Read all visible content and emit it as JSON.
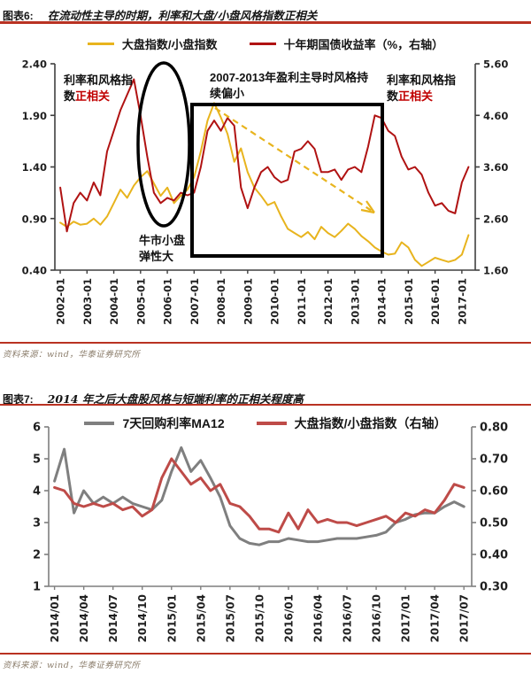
{
  "page": {
    "accent_rule_color": "#b93222",
    "background": "#ffffff",
    "annotation_highlight_color": "#c00000"
  },
  "figure6": {
    "label": "图表6:",
    "title": "在流动性主导的时期，利率和大盘/小盘风格指数正相关",
    "source": "资料来源：wind，华泰证券研究所",
    "annotations": {
      "corr_left_prefix": "利率和风格指数",
      "corr_left_highlight": "正相关",
      "box_label": "2007-2013年盈利主导时风格持续偏小",
      "corr_right_prefix": "利率和风格指数",
      "corr_right_highlight": "正相关",
      "bull_label": "牛市小盘弹性大"
    }
  },
  "figure7": {
    "label": "图表7:",
    "title": "2014 年之后大盘股风格与短端利率的正相关程度高",
    "source": "资料来源：wind，华泰证券研究所"
  },
  "chart_data": [
    {
      "id": "figure6",
      "type": "line",
      "title": "在流动性主导的时期，利率和大盘/小盘风格指数正相关",
      "x_unit": "year-month",
      "x_ticks": {
        "positions": [
          2002,
          2003,
          2004,
          2005,
          2006,
          2007,
          2008,
          2009,
          2010,
          2011,
          2012,
          2013,
          2014,
          2015,
          2016,
          2017
        ],
        "labels": [
          "2002-01",
          "2003-01",
          "2004-01",
          "2005-01",
          "2006-01",
          "2007-01",
          "2008-01",
          "2009-01",
          "2010-01",
          "2011-01",
          "2012-01",
          "2013-01",
          "2014-01",
          "2015-01",
          "2016-01",
          "2017-01"
        ]
      },
      "left_axis": {
        "min": 0.4,
        "max": 2.4,
        "ticks": [
          "0.40",
          "0.90",
          "1.40",
          "1.90",
          "2.40"
        ]
      },
      "right_axis": {
        "min": 1.6,
        "max": 5.6,
        "ticks": [
          "1.60",
          "2.60",
          "3.60",
          "4.60",
          "5.60"
        ]
      },
      "legend_position": "top-center",
      "grid": false,
      "series": [
        {
          "name": "大盘指数/小盘指数",
          "axis": "left",
          "color": "#e8b41e",
          "x_start": 2002.0,
          "x_step": 0.25,
          "values": [
            0.86,
            0.82,
            0.87,
            0.84,
            0.85,
            0.9,
            0.84,
            0.92,
            1.05,
            1.18,
            1.1,
            1.22,
            1.3,
            1.36,
            1.24,
            1.12,
            1.2,
            1.05,
            1.12,
            1.18,
            1.3,
            1.55,
            1.85,
            2.02,
            1.88,
            1.72,
            1.45,
            1.58,
            1.35,
            1.2,
            1.12,
            1.03,
            1.06,
            0.92,
            0.8,
            0.76,
            0.72,
            0.77,
            0.7,
            0.82,
            0.76,
            0.72,
            0.78,
            0.85,
            0.8,
            0.73,
            0.68,
            0.62,
            0.58,
            0.55,
            0.56,
            0.67,
            0.62,
            0.5,
            0.44,
            0.48,
            0.52,
            0.5,
            0.48,
            0.5,
            0.55,
            0.74
          ]
        },
        {
          "name": "十年期国债收益率（%，右轴）",
          "axis": "right",
          "color": "#b01212",
          "x_start": 2002.0,
          "x_step": 0.25,
          "values": [
            3.2,
            2.35,
            2.9,
            3.1,
            2.95,
            3.3,
            3.05,
            3.9,
            4.3,
            4.7,
            5.0,
            5.3,
            4.6,
            3.8,
            3.1,
            2.9,
            3.0,
            2.95,
            3.1,
            3.05,
            3.1,
            3.6,
            4.3,
            4.5,
            4.3,
            4.55,
            4.4,
            3.2,
            2.8,
            3.2,
            3.5,
            3.6,
            3.4,
            3.3,
            3.35,
            3.9,
            3.95,
            4.1,
            3.95,
            3.5,
            3.5,
            3.55,
            3.35,
            3.55,
            3.6,
            3.5,
            4.0,
            4.6,
            4.55,
            4.3,
            4.2,
            3.8,
            3.55,
            3.6,
            3.45,
            3.1,
            2.85,
            2.9,
            2.75,
            2.7,
            3.3,
            3.6
          ]
        }
      ]
    },
    {
      "id": "figure7",
      "type": "line",
      "title": "2014 年之后大盘股风格与短端利率的正相关程度高",
      "x_unit": "month-index",
      "x_ticks": {
        "positions": [
          0,
          3,
          6,
          9,
          12,
          15,
          18,
          21,
          24,
          27,
          30,
          33,
          36,
          39,
          42
        ],
        "labels": [
          "2014/01",
          "2014/04",
          "2014/07",
          "2014/10",
          "2015/01",
          "2015/04",
          "2015/07",
          "2015/10",
          "2016/01",
          "2016/04",
          "2016/07",
          "2016/10",
          "2017/01",
          "2017/04",
          "2017/07"
        ]
      },
      "left_axis": {
        "min": 1,
        "max": 6,
        "ticks": [
          "1",
          "2",
          "3",
          "4",
          "5",
          "6"
        ]
      },
      "right_axis": {
        "min": 0.3,
        "max": 0.8,
        "ticks": [
          "0.30",
          "0.40",
          "0.50",
          "0.60",
          "0.70",
          "0.80"
        ]
      },
      "legend_position": "top-center",
      "grid": false,
      "series": [
        {
          "name": "7天回购利率MA12",
          "axis": "left",
          "color": "#7f7f7f",
          "x_start": 0,
          "x_step": 1,
          "values": [
            4.3,
            5.3,
            3.3,
            4.0,
            3.6,
            3.8,
            3.6,
            3.8,
            3.6,
            3.5,
            3.4,
            3.7,
            4.6,
            5.35,
            4.6,
            4.95,
            4.4,
            3.8,
            2.9,
            2.5,
            2.35,
            2.3,
            2.4,
            2.4,
            2.5,
            2.45,
            2.4,
            2.4,
            2.45,
            2.5,
            2.5,
            2.5,
            2.55,
            2.6,
            2.7,
            3.0,
            3.1,
            3.25,
            3.3,
            3.3,
            3.5,
            3.65,
            3.5
          ]
        },
        {
          "name": "大盘指数/小盘指数（右轴）",
          "axis": "right",
          "color": "#be4b48",
          "x_start": 0,
          "x_step": 1,
          "values": [
            0.61,
            0.6,
            0.56,
            0.55,
            0.56,
            0.55,
            0.56,
            0.54,
            0.55,
            0.52,
            0.54,
            0.64,
            0.7,
            0.66,
            0.62,
            0.64,
            0.6,
            0.62,
            0.56,
            0.55,
            0.52,
            0.48,
            0.48,
            0.47,
            0.53,
            0.48,
            0.54,
            0.5,
            0.51,
            0.5,
            0.5,
            0.49,
            0.5,
            0.51,
            0.52,
            0.5,
            0.53,
            0.52,
            0.54,
            0.53,
            0.57,
            0.62,
            0.61
          ]
        }
      ]
    }
  ]
}
